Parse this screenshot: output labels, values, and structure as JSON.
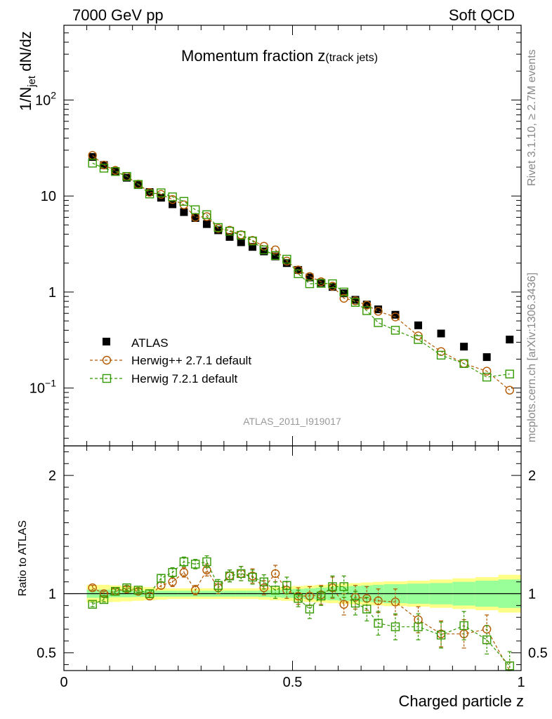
{
  "header": {
    "energy_label": "7000 GeV pp",
    "process_label": "Soft QCD"
  },
  "side_labels": {
    "rivet": "Rivet 3.1.10, ≥ 2.7M events",
    "mcplots": "mcplots.cern.ch [arXiv:1306.3436]"
  },
  "chart_data": [
    {
      "type": "scatter",
      "panel": "main",
      "title": "Momentum fraction z",
      "title_sub": "(track jets)",
      "ylabel": "1/N",
      "ylabel_sub": "jet",
      "ylabel_rest": " dN/dz",
      "yscale": "log",
      "ylim": [
        0.025,
        600
      ],
      "xlim": [
        0,
        1
      ],
      "grid": false,
      "legend_placement": "middle-left",
      "y_tick_labels": [
        {
          "value": 0.1,
          "base": "10",
          "exp": "−1"
        },
        {
          "value": 1,
          "text": "1"
        },
        {
          "value": 10,
          "text": "10"
        },
        {
          "value": 100,
          "base": "10",
          "exp": "2"
        }
      ],
      "annotation": "ATLAS_2011_I919017",
      "x": [
        0.0625,
        0.0875,
        0.1125,
        0.1375,
        0.1625,
        0.1875,
        0.2125,
        0.2375,
        0.2625,
        0.2875,
        0.3125,
        0.3375,
        0.3625,
        0.3875,
        0.4125,
        0.4375,
        0.4625,
        0.4875,
        0.5125,
        0.5375,
        0.5625,
        0.5875,
        0.6125,
        0.6375,
        0.6625,
        0.6875,
        0.725,
        0.775,
        0.825,
        0.875,
        0.925,
        0.975
      ],
      "series": [
        {
          "name": "ATLAS",
          "color": "#000000",
          "marker": "filled-square",
          "values": [
            25.5,
            21.0,
            18.0,
            15.5,
            13.0,
            11.0,
            9.6,
            8.2,
            6.8,
            5.9,
            5.1,
            4.4,
            3.75,
            3.3,
            2.95,
            2.65,
            2.35,
            2.0,
            1.7,
            1.42,
            1.25,
            1.13,
            0.97,
            0.83,
            0.74,
            0.66,
            0.58,
            0.45,
            0.37,
            0.27,
            0.21,
            0.32
          ]
        },
        {
          "name": "Herwig++ 2.7.1 default",
          "color": "#b35900",
          "marker": "open-circle",
          "values": [
            26.5,
            21.0,
            18.5,
            16.0,
            13.3,
            10.9,
            10.4,
            9.2,
            8.1,
            6.0,
            6.1,
            4.6,
            4.4,
            3.95,
            3.45,
            3.0,
            2.75,
            2.1,
            1.7,
            1.45,
            1.28,
            1.15,
            0.86,
            0.81,
            0.73,
            0.63,
            0.55,
            0.35,
            0.24,
            0.18,
            0.15,
            0.095
          ]
        },
        {
          "name": "Herwig 7.2.1 default",
          "color": "#339900",
          "marker": "open-square",
          "values": [
            22.0,
            19.5,
            18.0,
            16.0,
            13.2,
            10.5,
            10.8,
            9.8,
            8.8,
            7.2,
            6.4,
            4.7,
            4.3,
            3.9,
            3.4,
            2.75,
            2.4,
            2.2,
            1.55,
            1.22,
            1.23,
            1.22,
            1.0,
            0.78,
            0.64,
            0.48,
            0.4,
            0.32,
            0.22,
            0.18,
            0.13,
            0.14
          ]
        }
      ]
    },
    {
      "type": "scatter",
      "panel": "ratio",
      "ylabel": "Ratio to ATLAS",
      "ylim": [
        0.35,
        2.25
      ],
      "xlim": [
        0,
        1
      ],
      "xlabel": "Charged particle z",
      "x_tick_labels": [
        "0",
        "0.5",
        "1"
      ],
      "y_tick_labels": [
        "0.5",
        "1",
        "2"
      ],
      "reference_line": 1,
      "bands": {
        "stat_color": "#99ff99",
        "syst_color": "#ffff88",
        "edges": [
          0.05,
          0.075,
          0.1,
          0.125,
          0.15,
          0.175,
          0.2,
          0.225,
          0.25,
          0.275,
          0.3,
          0.325,
          0.35,
          0.375,
          0.4,
          0.425,
          0.45,
          0.475,
          0.5,
          0.525,
          0.55,
          0.575,
          0.6,
          0.625,
          0.65,
          0.675,
          0.7,
          0.75,
          0.8,
          0.85,
          0.9,
          0.95,
          1.0
        ],
        "syst_half_width": [
          0.075,
          0.075,
          0.07,
          0.065,
          0.06,
          0.055,
          0.05,
          0.045,
          0.045,
          0.045,
          0.045,
          0.045,
          0.045,
          0.045,
          0.045,
          0.05,
          0.055,
          0.06,
          0.065,
          0.07,
          0.075,
          0.08,
          0.085,
          0.09,
          0.095,
          0.1,
          0.105,
          0.11,
          0.12,
          0.13,
          0.14,
          0.16
        ],
        "stat_half_width": [
          0.035,
          0.035,
          0.03,
          0.03,
          0.028,
          0.026,
          0.025,
          0.025,
          0.025,
          0.025,
          0.025,
          0.025,
          0.025,
          0.025,
          0.025,
          0.028,
          0.03,
          0.035,
          0.04,
          0.045,
          0.05,
          0.055,
          0.06,
          0.065,
          0.07,
          0.075,
          0.08,
          0.085,
          0.09,
          0.1,
          0.11,
          0.12
        ]
      },
      "series": [
        {
          "name": "Herwig++ 2.7.1 default",
          "color": "#b35900",
          "marker": "open-circle",
          "values": [
            1.05,
            1.0,
            1.02,
            1.04,
            1.02,
            0.98,
            1.07,
            1.1,
            1.18,
            1.03,
            1.2,
            1.05,
            1.15,
            1.17,
            1.15,
            1.05,
            1.17,
            1.03,
            0.98,
            0.98,
            0.99,
            1.05,
            0.91,
            0.97,
            0.96,
            0.94,
            0.93,
            0.78,
            0.66,
            0.66,
            0.7,
            0.3
          ],
          "errors": [
            0.02,
            0.02,
            0.02,
            0.02,
            0.02,
            0.03,
            0.03,
            0.04,
            0.04,
            0.04,
            0.05,
            0.05,
            0.05,
            0.06,
            0.06,
            0.06,
            0.07,
            0.07,
            0.07,
            0.08,
            0.08,
            0.09,
            0.09,
            0.1,
            0.1,
            0.1,
            0.11,
            0.11,
            0.11,
            0.12,
            0.12,
            0.12
          ]
        },
        {
          "name": "Herwig 7.2.1 default",
          "color": "#339900",
          "marker": "open-square",
          "values": [
            0.91,
            0.95,
            1.02,
            1.05,
            1.03,
            1.0,
            1.13,
            1.18,
            1.27,
            1.25,
            1.27,
            1.07,
            1.15,
            1.17,
            1.14,
            1.1,
            1.03,
            1.07,
            0.96,
            0.87,
            0.98,
            1.06,
            1.06,
            0.92,
            0.87,
            0.75,
            0.72,
            0.72,
            0.65,
            0.73,
            0.61,
            0.39
          ],
          "errors": [
            0.02,
            0.02,
            0.02,
            0.02,
            0.02,
            0.03,
            0.03,
            0.04,
            0.04,
            0.04,
            0.05,
            0.05,
            0.05,
            0.06,
            0.06,
            0.06,
            0.07,
            0.07,
            0.07,
            0.08,
            0.08,
            0.09,
            0.09,
            0.1,
            0.1,
            0.1,
            0.11,
            0.11,
            0.11,
            0.12,
            0.12,
            0.12
          ]
        }
      ]
    }
  ]
}
